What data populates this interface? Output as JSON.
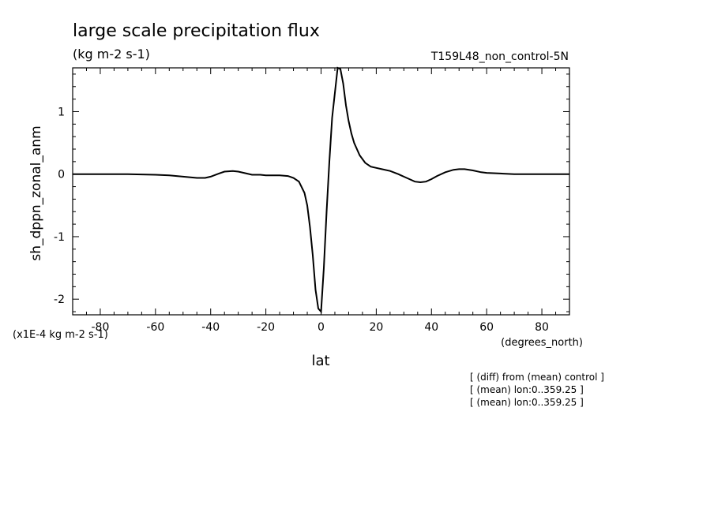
{
  "chart_data": {
    "type": "line",
    "title": "large scale precipitation flux",
    "units": "(kg m-2 s-1)",
    "run_label": "T159L48_non_control-5N",
    "ylabel": "sh_dppn_zonal_anm",
    "xlabel": "lat",
    "x_units": "(degrees_north)",
    "y_scale_note": "(x1E-4 kg m-2 s-1)",
    "annotations": [
      "[ (diff) from (mean) control ]",
      "[ (mean) lon:0..359.25 ]",
      "[ (mean) lon:0..359.25 ]"
    ],
    "xlim": [
      -90,
      90
    ],
    "ylim": [
      -2.25,
      1.7
    ],
    "x_ticks": [
      -80,
      -60,
      -40,
      -20,
      0,
      20,
      40,
      60,
      80
    ],
    "y_ticks": [
      -2,
      -1,
      0,
      1
    ],
    "grid": false,
    "series": [
      {
        "x": [
          -90,
          -80,
          -70,
          -60,
          -55,
          -50,
          -45,
          -42,
          -40,
          -37,
          -35,
          -32,
          -30,
          -27,
          -25,
          -22,
          -20,
          -17,
          -15,
          -12,
          -10,
          -8,
          -6,
          -5,
          -4,
          -3,
          -2,
          -1,
          0,
          1,
          2,
          3,
          4,
          5,
          6,
          7,
          8,
          9,
          10,
          11,
          12,
          14,
          16,
          18,
          20,
          22,
          25,
          28,
          30,
          32,
          34,
          36,
          38,
          40,
          42,
          45,
          48,
          50,
          52,
          55,
          58,
          60,
          65,
          70,
          75,
          80,
          85,
          90
        ],
        "y": [
          0,
          0,
          0,
          -0.01,
          -0.02,
          -0.04,
          -0.06,
          -0.06,
          -0.04,
          0.01,
          0.04,
          0.05,
          0.04,
          0.01,
          -0.01,
          -0.01,
          -0.02,
          -0.02,
          -0.02,
          -0.03,
          -0.06,
          -0.12,
          -0.3,
          -0.5,
          -0.85,
          -1.3,
          -1.85,
          -2.15,
          -2.2,
          -1.5,
          -0.6,
          0.2,
          0.9,
          1.3,
          1.7,
          1.68,
          1.45,
          1.1,
          0.85,
          0.65,
          0.5,
          0.3,
          0.18,
          0.12,
          0.1,
          0.08,
          0.05,
          0.0,
          -0.04,
          -0.08,
          -0.12,
          -0.13,
          -0.12,
          -0.08,
          -0.03,
          0.03,
          0.07,
          0.08,
          0.08,
          0.06,
          0.03,
          0.02,
          0.01,
          0,
          0,
          0,
          0,
          0
        ]
      }
    ]
  }
}
